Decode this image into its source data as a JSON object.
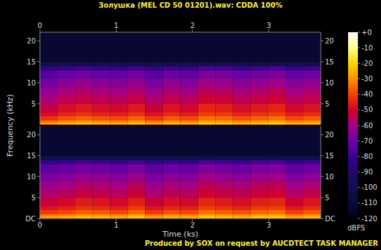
{
  "chart_data": {
    "type": "heatmap",
    "title": "Золушка (MEL CD 50 01201).wav: CDDA 100%",
    "x_label": "Time (ks)",
    "y_label": "Frequency (kHz)",
    "footer": "Produced by SOX on request by AUCDTECT TASK MANAGER",
    "xlim": [
      0,
      3.68
    ],
    "xticks": [
      0,
      1,
      2,
      3
    ],
    "ylim": [
      0,
      22.05
    ],
    "time_bins": [
      0,
      0.23,
      0.46,
      0.69,
      0.92,
      1.15,
      1.38,
      1.61,
      1.84,
      2.07,
      2.3,
      2.53,
      2.76,
      2.99,
      3.22,
      3.45,
      3.68
    ],
    "frequency_bins": [
      0,
      0.5,
      1,
      2,
      3,
      5,
      7,
      9,
      11,
      13,
      14,
      15,
      22.05
    ],
    "channels": [
      {
        "yticks": [
          5,
          10,
          15,
          20
        ],
        "cells": [
          [
            -28,
            -24,
            -22,
            -24,
            -25,
            -22,
            -27,
            -23,
            -25,
            -20,
            -21,
            -24,
            -22,
            -20,
            -25,
            -23
          ],
          [
            -34,
            -30,
            -28,
            -30,
            -31,
            -28,
            -33,
            -29,
            -31,
            -26,
            -27,
            -30,
            -28,
            -26,
            -31,
            -29
          ],
          [
            -42,
            -38,
            -36,
            -38,
            -39,
            -36,
            -41,
            -37,
            -39,
            -34,
            -35,
            -38,
            -36,
            -34,
            -39,
            -37
          ],
          [
            -48,
            -44,
            -42,
            -44,
            -45,
            -42,
            -47,
            -43,
            -45,
            -40,
            -41,
            -44,
            -42,
            -40,
            -45,
            -43
          ],
          [
            -52,
            -48,
            -46,
            -48,
            -49,
            -46,
            -51,
            -47,
            -49,
            -44,
            -45,
            -48,
            -46,
            -44,
            -49,
            -47
          ],
          [
            -58,
            -54,
            -52,
            -54,
            -55,
            -52,
            -57,
            -53,
            -55,
            -50,
            -51,
            -54,
            -52,
            -50,
            -55,
            -53
          ],
          [
            -62,
            -58,
            -56,
            -58,
            -59,
            -56,
            -61,
            -57,
            -59,
            -54,
            -55,
            -58,
            -56,
            -54,
            -59,
            -57
          ],
          [
            -68,
            -64,
            -62,
            -64,
            -65,
            -62,
            -67,
            -63,
            -65,
            -60,
            -61,
            -64,
            -62,
            -60,
            -65,
            -63
          ],
          [
            -74,
            -70,
            -68,
            -70,
            -71,
            -68,
            -73,
            -69,
            -71,
            -66,
            -67,
            -70,
            -68,
            -66,
            -71,
            -69
          ],
          [
            -84,
            -80,
            -78,
            -80,
            -81,
            -78,
            -83,
            -79,
            -81,
            -76,
            -77,
            -80,
            -78,
            -76,
            -81,
            -79
          ],
          [
            -100,
            -100,
            -100,
            -100,
            -100,
            -100,
            -100,
            -100,
            -100,
            -100,
            -100,
            -100,
            -100,
            -100,
            -100,
            -100
          ],
          [
            -112,
            -112,
            -112,
            -112,
            -112,
            -112,
            -112,
            -112,
            -112,
            -112,
            -112,
            -112,
            -112,
            -112,
            -112,
            -112
          ]
        ]
      },
      {
        "yticks": [
          {
            "value": 0,
            "label": "DC"
          },
          5,
          10,
          15,
          20
        ],
        "cells": [
          [
            -27,
            -25,
            -22,
            -23,
            -25,
            -21,
            -27,
            -24,
            -25,
            -20,
            -22,
            -24,
            -21,
            -20,
            -26,
            -23
          ],
          [
            -33,
            -31,
            -28,
            -29,
            -31,
            -27,
            -33,
            -30,
            -31,
            -26,
            -28,
            -30,
            -27,
            -26,
            -32,
            -29
          ],
          [
            -41,
            -39,
            -36,
            -37,
            -39,
            -35,
            -41,
            -38,
            -39,
            -34,
            -36,
            -38,
            -35,
            -34,
            -40,
            -37
          ],
          [
            -47,
            -45,
            -42,
            -43,
            -45,
            -41,
            -47,
            -44,
            -45,
            -40,
            -42,
            -44,
            -41,
            -40,
            -46,
            -43
          ],
          [
            -51,
            -49,
            -46,
            -47,
            -49,
            -45,
            -51,
            -48,
            -49,
            -44,
            -46,
            -48,
            -45,
            -44,
            -50,
            -47
          ],
          [
            -57,
            -55,
            -52,
            -53,
            -55,
            -51,
            -57,
            -54,
            -55,
            -50,
            -52,
            -54,
            -51,
            -50,
            -56,
            -53
          ],
          [
            -61,
            -59,
            -56,
            -57,
            -59,
            -55,
            -61,
            -58,
            -59,
            -54,
            -56,
            -58,
            -55,
            -54,
            -60,
            -57
          ],
          [
            -67,
            -65,
            -62,
            -63,
            -65,
            -61,
            -67,
            -64,
            -65,
            -60,
            -62,
            -64,
            -61,
            -60,
            -66,
            -63
          ],
          [
            -73,
            -71,
            -68,
            -69,
            -71,
            -67,
            -73,
            -70,
            -71,
            -66,
            -68,
            -70,
            -67,
            -66,
            -72,
            -69
          ],
          [
            -83,
            -81,
            -78,
            -79,
            -81,
            -77,
            -83,
            -80,
            -81,
            -76,
            -78,
            -80,
            -77,
            -76,
            -82,
            -79
          ],
          [
            -100,
            -100,
            -100,
            -100,
            -100,
            -100,
            -100,
            -100,
            -100,
            -100,
            -100,
            -100,
            -100,
            -100,
            -100,
            -100
          ],
          [
            -112,
            -112,
            -112,
            -112,
            -112,
            -112,
            -112,
            -112,
            -112,
            -112,
            -112,
            -112,
            -112,
            -112,
            -112,
            -112
          ]
        ]
      }
    ],
    "colorbar": {
      "label": "dBFS",
      "range": [
        -120,
        0
      ],
      "ticks": [
        {
          "value": 0,
          "label": "+0"
        },
        -10,
        -20,
        -30,
        -40,
        -50,
        -60,
        -70,
        -80,
        -90,
        -100,
        -110,
        -120
      ]
    }
  }
}
